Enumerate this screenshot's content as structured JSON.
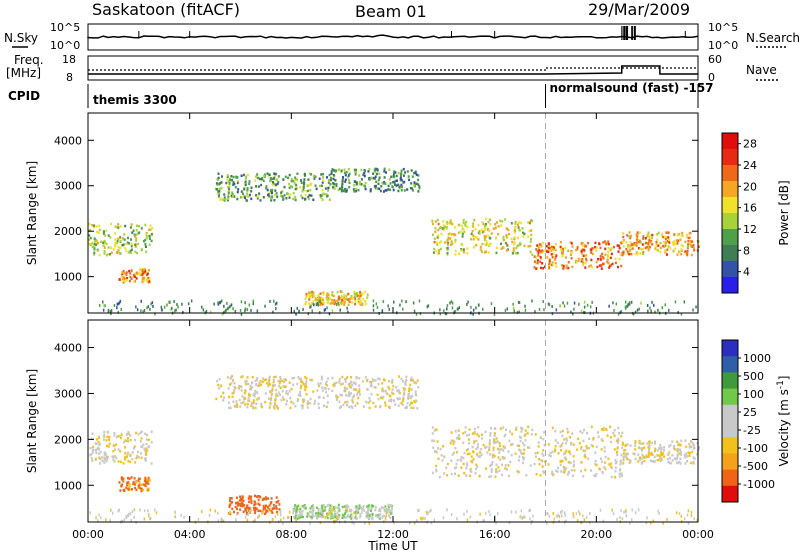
{
  "header": {
    "station": "Saskatoon (fitACF)",
    "beam": "Beam 01",
    "date": "29/Mar/2009"
  },
  "noise_panel": {
    "left_label": "N.Sky",
    "right_label": "N.Search",
    "left_ticks": [
      "10^5",
      "10^0"
    ],
    "right_ticks": [
      "10^5",
      "10^0"
    ]
  },
  "freq_panel": {
    "left_label_1": "Freq.",
    "left_label_2": "[MHz]",
    "right_label": "Nave",
    "left_ticks": [
      "18",
      "8"
    ],
    "right_ticks": [
      "60",
      "0"
    ]
  },
  "cpid": {
    "label": "CPID",
    "segments": [
      {
        "text": "themis 3300",
        "start_hour": 0
      },
      {
        "text": "normalsound (fast) -157",
        "start_hour": 18
      }
    ]
  },
  "colors": {
    "power_scale": [
      "#2a1fe8",
      "#3452a8",
      "#3e7d55",
      "#4fa04a",
      "#a8d23a",
      "#f0e22a",
      "#f5a623",
      "#ee6a1a",
      "#e62b12",
      "#e00d0d"
    ],
    "velocity_scale": [
      "#e10c0c",
      "#f06418",
      "#f5a21a",
      "#f2c21c",
      "#c9c9c9",
      "#c9c9c9",
      "#72c84a",
      "#3e9a3c",
      "#2f5fa8",
      "#2a2fbf"
    ]
  },
  "chart_data": [
    {
      "type": "heatmap",
      "xlabel": "",
      "ylabel": "Slant Range [km]",
      "x_ticks": [
        "00:00",
        "04:00",
        "08:00",
        "12:00",
        "16:00",
        "20:00",
        "00:00"
      ],
      "xlim_hours": [
        0,
        24
      ],
      "ylim_km": [
        200,
        4600
      ],
      "y_ticks": [
        1000,
        2000,
        3000,
        4000
      ],
      "colorbar_label": "Power [dB]",
      "colorbar_ticks": [
        "4",
        "8",
        "12",
        "16",
        "20",
        "24",
        "28"
      ],
      "colorbar_range": [
        0,
        30
      ],
      "bands": [
        {
          "t0": 0.0,
          "t1": 2.5,
          "r0": 1500,
          "r1": 2200,
          "value": 14
        },
        {
          "t0": 1.2,
          "t1": 2.4,
          "r0": 900,
          "r1": 1200,
          "value": 22
        },
        {
          "t0": 5.0,
          "t1": 9.5,
          "r0": 2700,
          "r1": 3300,
          "value": 10
        },
        {
          "t0": 9.5,
          "t1": 13.0,
          "r0": 2900,
          "r1": 3400,
          "value": 8
        },
        {
          "t0": 13.5,
          "t1": 17.5,
          "r0": 1500,
          "r1": 2300,
          "value": 16
        },
        {
          "t0": 17.5,
          "t1": 21.0,
          "r0": 1200,
          "r1": 1800,
          "value": 22
        },
        {
          "t0": 21.0,
          "t1": 24.0,
          "r0": 1500,
          "r1": 2000,
          "value": 20
        },
        {
          "t0": 8.5,
          "t1": 11.0,
          "r0": 400,
          "r1": 700,
          "value": 18
        }
      ]
    },
    {
      "type": "heatmap",
      "xlabel": "Time UT",
      "ylabel": "Slant Range [km]",
      "x_ticks": [
        "00:00",
        "04:00",
        "08:00",
        "12:00",
        "16:00",
        "20:00",
        "00:00"
      ],
      "xlim_hours": [
        0,
        24
      ],
      "ylim_km": [
        200,
        4600
      ],
      "y_ticks": [
        1000,
        2000,
        3000,
        4000
      ],
      "colorbar_label": "Velocity [m s^-1]",
      "colorbar_ticks": [
        "1000",
        "500",
        "100",
        "25",
        "-25",
        "-100",
        "-500",
        "-1000"
      ],
      "colorbar_range": [
        -1000,
        1000
      ],
      "bands": [
        {
          "t0": 0.0,
          "t1": 2.5,
          "r0": 1500,
          "r1": 2200,
          "value": 0
        },
        {
          "t0": 1.2,
          "t1": 2.4,
          "r0": 900,
          "r1": 1200,
          "value": -150
        },
        {
          "t0": 5.0,
          "t1": 13.0,
          "r0": 2700,
          "r1": 3400,
          "value": 0
        },
        {
          "t0": 13.5,
          "t1": 21.0,
          "r0": 1200,
          "r1": 2300,
          "value": 0
        },
        {
          "t0": 21.0,
          "t1": 24.0,
          "r0": 1500,
          "r1": 2000,
          "value": 0
        },
        {
          "t0": 5.5,
          "t1": 7.5,
          "r0": 400,
          "r1": 800,
          "value": -300
        },
        {
          "t0": 8.0,
          "t1": 12.0,
          "r0": 300,
          "r1": 600,
          "value": 80
        }
      ]
    }
  ]
}
